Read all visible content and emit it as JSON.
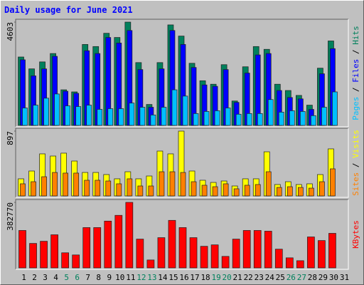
{
  "chart_data": [
    {
      "type": "bar",
      "title": "Daily usage for June 2021",
      "legend_separator": " / ",
      "ylim": [
        0,
        4603
      ],
      "yticks": [
        4603
      ],
      "series": [
        {
          "name": "Hits",
          "color": "#00805c",
          "values": [
            3048,
            2519,
            2830,
            3203,
            1586,
            1493,
            3607,
            3514,
            4105,
            3918,
            4603,
            2799,
            933,
            2799,
            4478,
            3980,
            2768,
            1990,
            1835,
            2706,
            1088,
            2612,
            3514,
            3390,
            1835,
            1555,
            1337,
            902,
            2550,
            3763,
            0
          ]
        },
        {
          "name": "Files",
          "color": "#0000ff",
          "values": [
            2923,
            2208,
            2519,
            3079,
            1524,
            1430,
            3328,
            3203,
            3918,
            3670,
            4229,
            2488,
            809,
            2519,
            4229,
            3607,
            2581,
            1804,
            1742,
            2488,
            1026,
            2332,
            3141,
            3203,
            1555,
            1244,
            1182,
            715,
            2301,
            3421,
            0
          ]
        },
        {
          "name": "Pages",
          "color": "#00c0ff",
          "values": [
            777,
            902,
            1213,
            1400,
            871,
            840,
            902,
            715,
            746,
            746,
            995,
            809,
            466,
            809,
            1586,
            1306,
            529,
            622,
            653,
            777,
            498,
            529,
            529,
            1151,
            591,
            653,
            622,
            435,
            809,
            1493,
            0
          ]
        }
      ]
    },
    {
      "type": "bar",
      "legend_separator": " / ",
      "ylim": [
        0,
        897
      ],
      "yticks": [
        897
      ],
      "series": [
        {
          "name": "Visits",
          "color": "#ffff00",
          "values": [
            237,
            345,
            582,
            552,
            592,
            483,
            325,
            325,
            296,
            237,
            335,
            237,
            276,
            621,
            582,
            897,
            345,
            217,
            187,
            207,
            138,
            237,
            237,
            611,
            158,
            197,
            158,
            168,
            296,
            651,
            0
          ]
        },
        {
          "name": "Sites",
          "color": "#ff8000",
          "values": [
            168,
            197,
            266,
            325,
            316,
            316,
            217,
            217,
            207,
            168,
            237,
            138,
            138,
            335,
            335,
            325,
            197,
            148,
            128,
            168,
            99,
            148,
            158,
            335,
            118,
            128,
            118,
            108,
            197,
            375,
            0
          ]
        }
      ]
    },
    {
      "type": "bar",
      "ylim": [
        0,
        382770
      ],
      "yticks": [
        382770
      ],
      "categories": [
        "1",
        "2",
        "3",
        "4",
        "5",
        "6",
        "7",
        "8",
        "9",
        "10",
        "11",
        "12",
        "13",
        "14",
        "15",
        "16",
        "17",
        "18",
        "19",
        "20",
        "21",
        "22",
        "23",
        "24",
        "25",
        "26",
        "27",
        "28",
        "29",
        "30",
        "31"
      ],
      "category_colors": [
        "#000000",
        "#000000",
        "#000000",
        "#000000",
        "#00805c",
        "#00805c",
        "#000000",
        "#000000",
        "#000000",
        "#000000",
        "#000000",
        "#00805c",
        "#00805c",
        "#000000",
        "#000000",
        "#000000",
        "#000000",
        "#000000",
        "#00805c",
        "#00805c",
        "#000000",
        "#000000",
        "#000000",
        "#000000",
        "#000000",
        "#00805c",
        "#00805c",
        "#000000",
        "#000000",
        "#000000",
        "#000000"
      ],
      "series": [
        {
          "name": "KBytes",
          "color": "#ff0000",
          "values": [
            218700,
            143000,
            155600,
            193500,
            88300,
            75700,
            235500,
            235500,
            273400,
            307000,
            382770,
            168200,
            46300,
            176700,
            277600,
            235500,
            176700,
            126200,
            134600,
            67300,
            168200,
            218700,
            218700,
            214500,
            109400,
            58900,
            42100,
            180900,
            159800,
            201900,
            0
          ]
        }
      ]
    }
  ]
}
